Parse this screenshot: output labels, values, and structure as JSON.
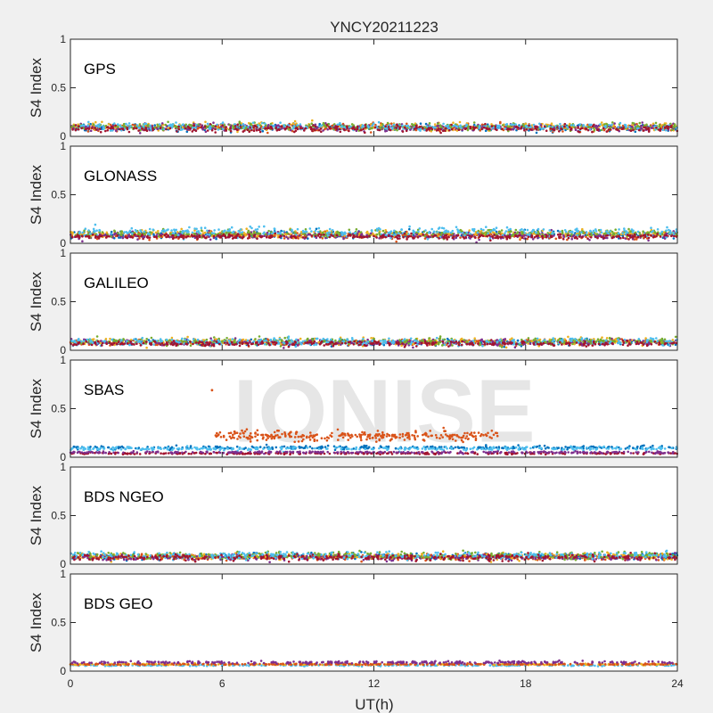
{
  "chart_data": {
    "type": "scatter",
    "title": "YNCY20211223",
    "xlabel": "UT(h)",
    "ylabel": "S4 Index",
    "xlim": [
      0,
      24
    ],
    "ylim": [
      0,
      1
    ],
    "xticks": [
      "0",
      "6",
      "12",
      "18",
      "24"
    ],
    "yticks": [
      "0",
      "0.5",
      "1"
    ],
    "grid": false,
    "watermark": "IONISE",
    "watermark_panel": "SBAS",
    "colors": [
      "#0072BD",
      "#D95319",
      "#EDB120",
      "#7E2F8E",
      "#77AC30",
      "#4DBEEE",
      "#A2142F"
    ],
    "panels": [
      {
        "label": "GPS",
        "series": [
          {
            "color": "#0072BD",
            "y_mean": 0.09,
            "y_spread": 0.03
          },
          {
            "color": "#D95319",
            "y_mean": 0.09,
            "y_spread": 0.03
          },
          {
            "color": "#EDB120",
            "y_mean": 0.1,
            "y_spread": 0.03
          },
          {
            "color": "#7E2F8E",
            "y_mean": 0.09,
            "y_spread": 0.03
          },
          {
            "color": "#77AC30",
            "y_mean": 0.1,
            "y_spread": 0.03
          },
          {
            "color": "#4DBEEE",
            "y_mean": 0.1,
            "y_spread": 0.03
          },
          {
            "color": "#A2142F",
            "y_mean": 0.08,
            "y_spread": 0.03
          }
        ]
      },
      {
        "label": "GLONASS",
        "series": [
          {
            "color": "#0072BD",
            "y_mean": 0.09,
            "y_spread": 0.03
          },
          {
            "color": "#D95319",
            "y_mean": 0.08,
            "y_spread": 0.03
          },
          {
            "color": "#EDB120",
            "y_mean": 0.1,
            "y_spread": 0.03
          },
          {
            "color": "#7E2F8E",
            "y_mean": 0.08,
            "y_spread": 0.03
          },
          {
            "color": "#77AC30",
            "y_mean": 0.1,
            "y_spread": 0.03
          },
          {
            "color": "#4DBEEE",
            "y_mean": 0.12,
            "y_spread": 0.04
          },
          {
            "color": "#A2142F",
            "y_mean": 0.07,
            "y_spread": 0.02
          }
        ]
      },
      {
        "label": "GALILEO",
        "series": [
          {
            "color": "#0072BD",
            "y_mean": 0.08,
            "y_spread": 0.025
          },
          {
            "color": "#D95319",
            "y_mean": 0.08,
            "y_spread": 0.025
          },
          {
            "color": "#EDB120",
            "y_mean": 0.09,
            "y_spread": 0.03
          },
          {
            "color": "#7E2F8E",
            "y_mean": 0.08,
            "y_spread": 0.025
          },
          {
            "color": "#77AC30",
            "y_mean": 0.09,
            "y_spread": 0.03
          },
          {
            "color": "#4DBEEE",
            "y_mean": 0.09,
            "y_spread": 0.03
          },
          {
            "color": "#A2142F",
            "y_mean": 0.07,
            "y_spread": 0.02
          }
        ]
      },
      {
        "label": "SBAS",
        "series": [
          {
            "color": "#0072BD",
            "y_mean": 0.1,
            "y_spread": 0.015
          },
          {
            "color": "#4DBEEE",
            "y_mean": 0.09,
            "y_spread": 0.015
          },
          {
            "color": "#A2142F",
            "y_mean": 0.04,
            "y_spread": 0.008
          },
          {
            "color": "#7E2F8E",
            "y_mean": 0.05,
            "y_spread": 0.008
          },
          {
            "color": "#D95319",
            "y_mean": 0.22,
            "y_spread": 0.04,
            "x_start": 5.7,
            "x_end": 16.9,
            "outlier": {
              "x": 5.6,
              "y": 0.69
            }
          }
        ]
      },
      {
        "label": "BDS NGEO",
        "series": [
          {
            "color": "#0072BD",
            "y_mean": 0.08,
            "y_spread": 0.025
          },
          {
            "color": "#D95319",
            "y_mean": 0.07,
            "y_spread": 0.025
          },
          {
            "color": "#EDB120",
            "y_mean": 0.08,
            "y_spread": 0.025
          },
          {
            "color": "#7E2F8E",
            "y_mean": 0.07,
            "y_spread": 0.025
          },
          {
            "color": "#77AC30",
            "y_mean": 0.09,
            "y_spread": 0.03
          },
          {
            "color": "#4DBEEE",
            "y_mean": 0.09,
            "y_spread": 0.03
          },
          {
            "color": "#A2142F",
            "y_mean": 0.07,
            "y_spread": 0.025
          }
        ]
      },
      {
        "label": "BDS GEO",
        "series": [
          {
            "color": "#4DBEEE",
            "y_mean": 0.06,
            "y_spread": 0.006
          },
          {
            "color": "#EDB120",
            "y_mean": 0.07,
            "y_spread": 0.006
          },
          {
            "color": "#D95319",
            "y_mean": 0.07,
            "y_spread": 0.006
          },
          {
            "color": "#7E2F8E",
            "y_mean": 0.09,
            "y_spread": 0.01
          }
        ]
      }
    ]
  }
}
